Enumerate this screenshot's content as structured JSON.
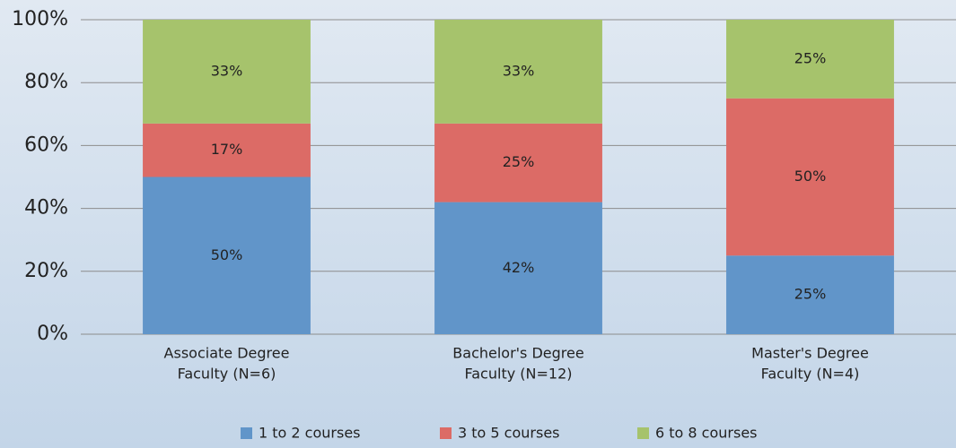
{
  "chart_data": {
    "type": "stacked_bar",
    "categories": [
      [
        "Associate Degree",
        "Faculty (N=6)"
      ],
      [
        "Bachelor's Degree",
        "Faculty (N=12)"
      ],
      [
        "Master's Degree",
        "Faculty (N=4)"
      ]
    ],
    "series": [
      {
        "name": "1 to 2 courses",
        "color": "#6195c9",
        "values": [
          50,
          42,
          25
        ],
        "value_labels": [
          "50%",
          "42%",
          "25%"
        ]
      },
      {
        "name": "3 to 5 courses",
        "color": "#dc6b66",
        "values": [
          17,
          25,
          50
        ],
        "value_labels": [
          "17%",
          "25%",
          "50%"
        ]
      },
      {
        "name": "6 to 8 courses",
        "color": "#a6c36c",
        "values": [
          33,
          33,
          25
        ],
        "value_labels": [
          "33%",
          "33%",
          "25%"
        ]
      }
    ],
    "ylim": [
      0,
      100
    ],
    "yticks": [
      {
        "value": 0,
        "label": "0%"
      },
      {
        "value": 20,
        "label": "20%"
      },
      {
        "value": 40,
        "label": "40%"
      },
      {
        "value": 60,
        "label": "60%"
      },
      {
        "value": 80,
        "label": "80%"
      },
      {
        "value": 100,
        "label": "100%"
      }
    ],
    "grid": true,
    "legend": "bottom"
  }
}
